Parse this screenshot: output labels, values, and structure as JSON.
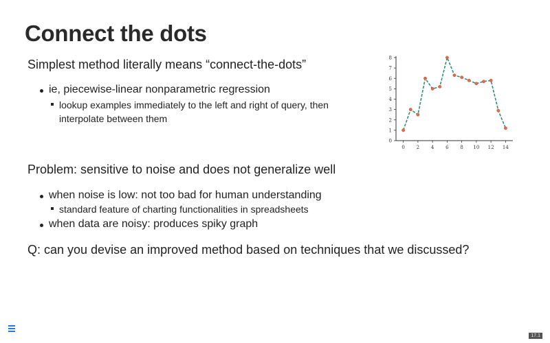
{
  "slide": {
    "title": "Connect the dots",
    "intro": "Simplest method literally means “connect-the-dots”",
    "bullet1": "ie, piecewise-linear nonparametric regression",
    "sub1": "lookup examples immediately to the left and right of query, then interpolate between them",
    "problem": "Problem: sensitive to noise and does not generalize well",
    "bullet2": "when noise is low: not too bad for human understanding",
    "sub2": "standard feature of charting functionalities in spreadsheets",
    "bullet3": "when data are noisy: produces spiky graph",
    "question": "Q: can you devise an improved method based on techniques that we discussed?",
    "slide_number": "17.1"
  },
  "colors": {
    "line": "#2e8f7a",
    "points": "#e06a4a",
    "menu": "#2a76dd"
  },
  "chart_data": {
    "type": "line",
    "x": [
      0,
      1,
      2,
      3,
      4,
      5,
      6,
      7,
      8,
      9,
      10,
      11,
      12,
      13,
      14
    ],
    "y": [
      1,
      3,
      2.5,
      6,
      5,
      5.2,
      8,
      6.3,
      6.1,
      5.8,
      5.5,
      5.7,
      5.8,
      2.9,
      1.2
    ],
    "xticks": [
      0,
      2,
      4,
      6,
      8,
      10,
      12,
      14
    ],
    "yticks": [
      0,
      1,
      2,
      3,
      4,
      5,
      6,
      7,
      8
    ],
    "xlim": [
      -1,
      15
    ],
    "ylim": [
      0,
      8
    ],
    "line_style": "dashed",
    "grid": false
  }
}
